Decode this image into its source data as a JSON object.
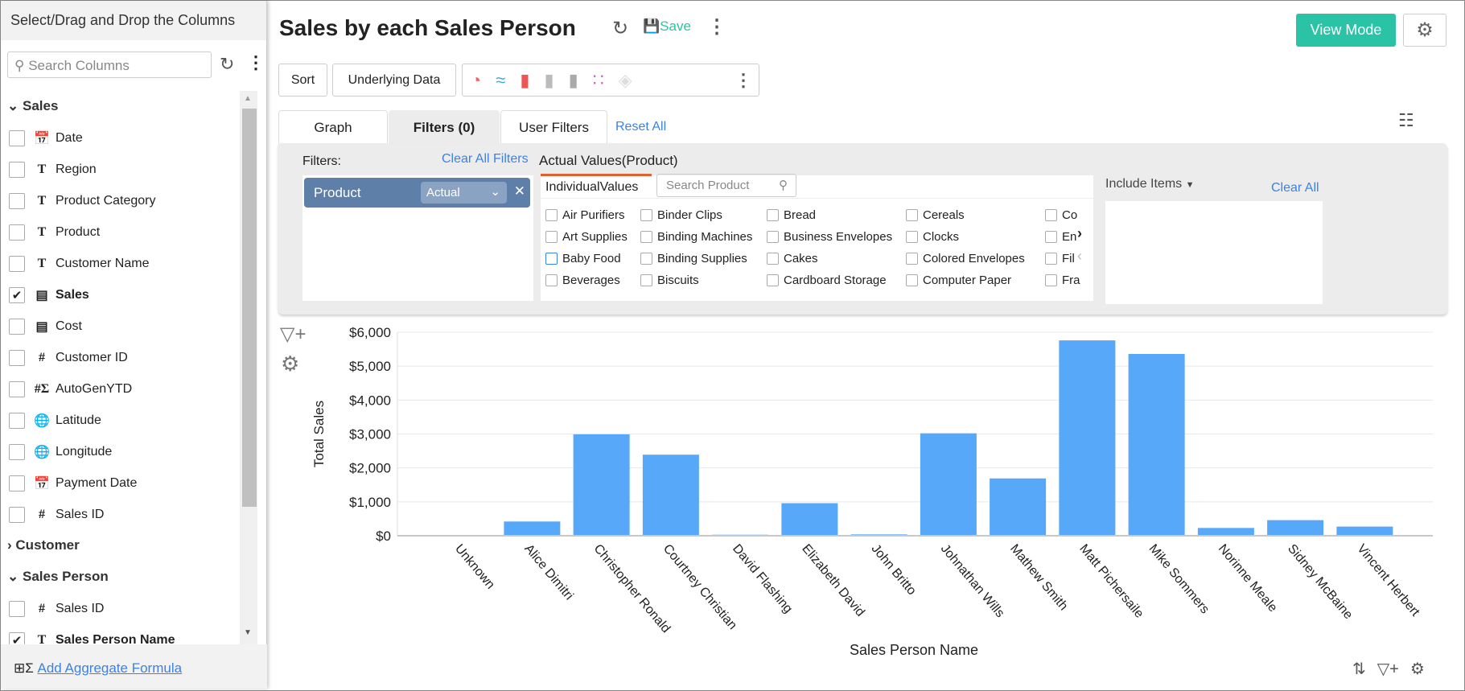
{
  "sidebar": {
    "title": "Select/Drag and Drop the Columns",
    "search_placeholder": "Search Columns",
    "groups": [
      {
        "label": "Sales",
        "expanded": true,
        "items": [
          {
            "label": "Date",
            "type": "date-icon",
            "checked": false
          },
          {
            "label": "Region",
            "type": "text-icon",
            "checked": false
          },
          {
            "label": "Product Category",
            "type": "text-icon",
            "checked": false
          },
          {
            "label": "Product",
            "type": "text-icon",
            "checked": false
          },
          {
            "label": "Customer Name",
            "type": "text-icon",
            "checked": false
          },
          {
            "label": "Sales",
            "type": "currency-icon",
            "checked": true
          },
          {
            "label": "Cost",
            "type": "currency-icon",
            "checked": false
          },
          {
            "label": "Customer ID",
            "type": "number-icon",
            "checked": false
          },
          {
            "label": "AutoGenYTD",
            "type": "formula-icon",
            "checked": false
          },
          {
            "label": "Latitude",
            "type": "globe-icon",
            "checked": false
          },
          {
            "label": "Longitude",
            "type": "globe-icon",
            "checked": false
          },
          {
            "label": "Payment Date",
            "type": "date-icon",
            "checked": false
          },
          {
            "label": "Sales ID",
            "type": "number-icon",
            "checked": false
          }
        ]
      },
      {
        "label": "Customer",
        "expanded": false,
        "items": []
      },
      {
        "label": "Sales Person",
        "expanded": true,
        "items": [
          {
            "label": "Sales ID",
            "type": "number-icon",
            "checked": false
          },
          {
            "label": "Sales Person Name",
            "type": "text-icon",
            "checked": true
          }
        ]
      }
    ],
    "footer_link": "Add Aggregate Formula"
  },
  "header": {
    "title": "Sales by each Sales Person",
    "save": "Save",
    "view_mode": "View Mode"
  },
  "toolbar": {
    "sort": "Sort",
    "underlying": "Underlying Data"
  },
  "tabs": [
    {
      "label": "Graph"
    },
    {
      "label": "Filters (0)",
      "active": true
    },
    {
      "label": "User Filters"
    }
  ],
  "reset_all": "Reset All",
  "filters": {
    "label": "Filters:",
    "clear_all_filters": "Clear All Filters",
    "chip": "Product",
    "chip_mode": "Actual",
    "values_title": "Actual Values(Product)",
    "subtab": "IndividualValues",
    "search_placeholder": "Search Product",
    "columns": [
      [
        "Air Purifiers",
        "Art Supplies",
        "Baby Food",
        "Beverages"
      ],
      [
        "Binder Clips",
        "Binding Machines",
        "Binding Supplies",
        "Biscuits"
      ],
      [
        "Bread",
        "Business Envelopes",
        "Cakes",
        "Cardboard Storage"
      ],
      [
        "Cereals",
        "Clocks",
        "Colored Envelopes",
        "Computer Paper"
      ],
      [
        "Co",
        "En",
        "Fil",
        "Fra"
      ]
    ],
    "include": "Include Items",
    "clear_all": "Clear All"
  },
  "colors": {
    "accent": "#2bc3a6",
    "bar": "#58a8fa",
    "link": "#3b82e6",
    "chip": "#5d7fa8"
  },
  "chart_data": {
    "type": "bar",
    "xlabel": "Sales Person Name",
    "ylabel": "Total Sales",
    "ylim": [
      0,
      6000
    ],
    "yticks": [
      "$0",
      "$1,000",
      "$2,000",
      "$3,000",
      "$4,000",
      "$5,000",
      "$6,000"
    ],
    "grid": true,
    "categories": [
      "Unknown",
      "Alice Dimitri",
      "Christopher Ronald",
      "Courtney Christian",
      "David Flashing",
      "Elizabeth David",
      "John Britto",
      "Johnathan Wills",
      "Mathew Smith",
      "Matt Pichersaile",
      "Mike Sommers",
      "Norinne Meale",
      "Sidney McBaine",
      "Vincent Herbert"
    ],
    "values": [
      0,
      420,
      2990,
      2390,
      30,
      960,
      40,
      3020,
      1690,
      5760,
      5360,
      230,
      460,
      270
    ]
  }
}
